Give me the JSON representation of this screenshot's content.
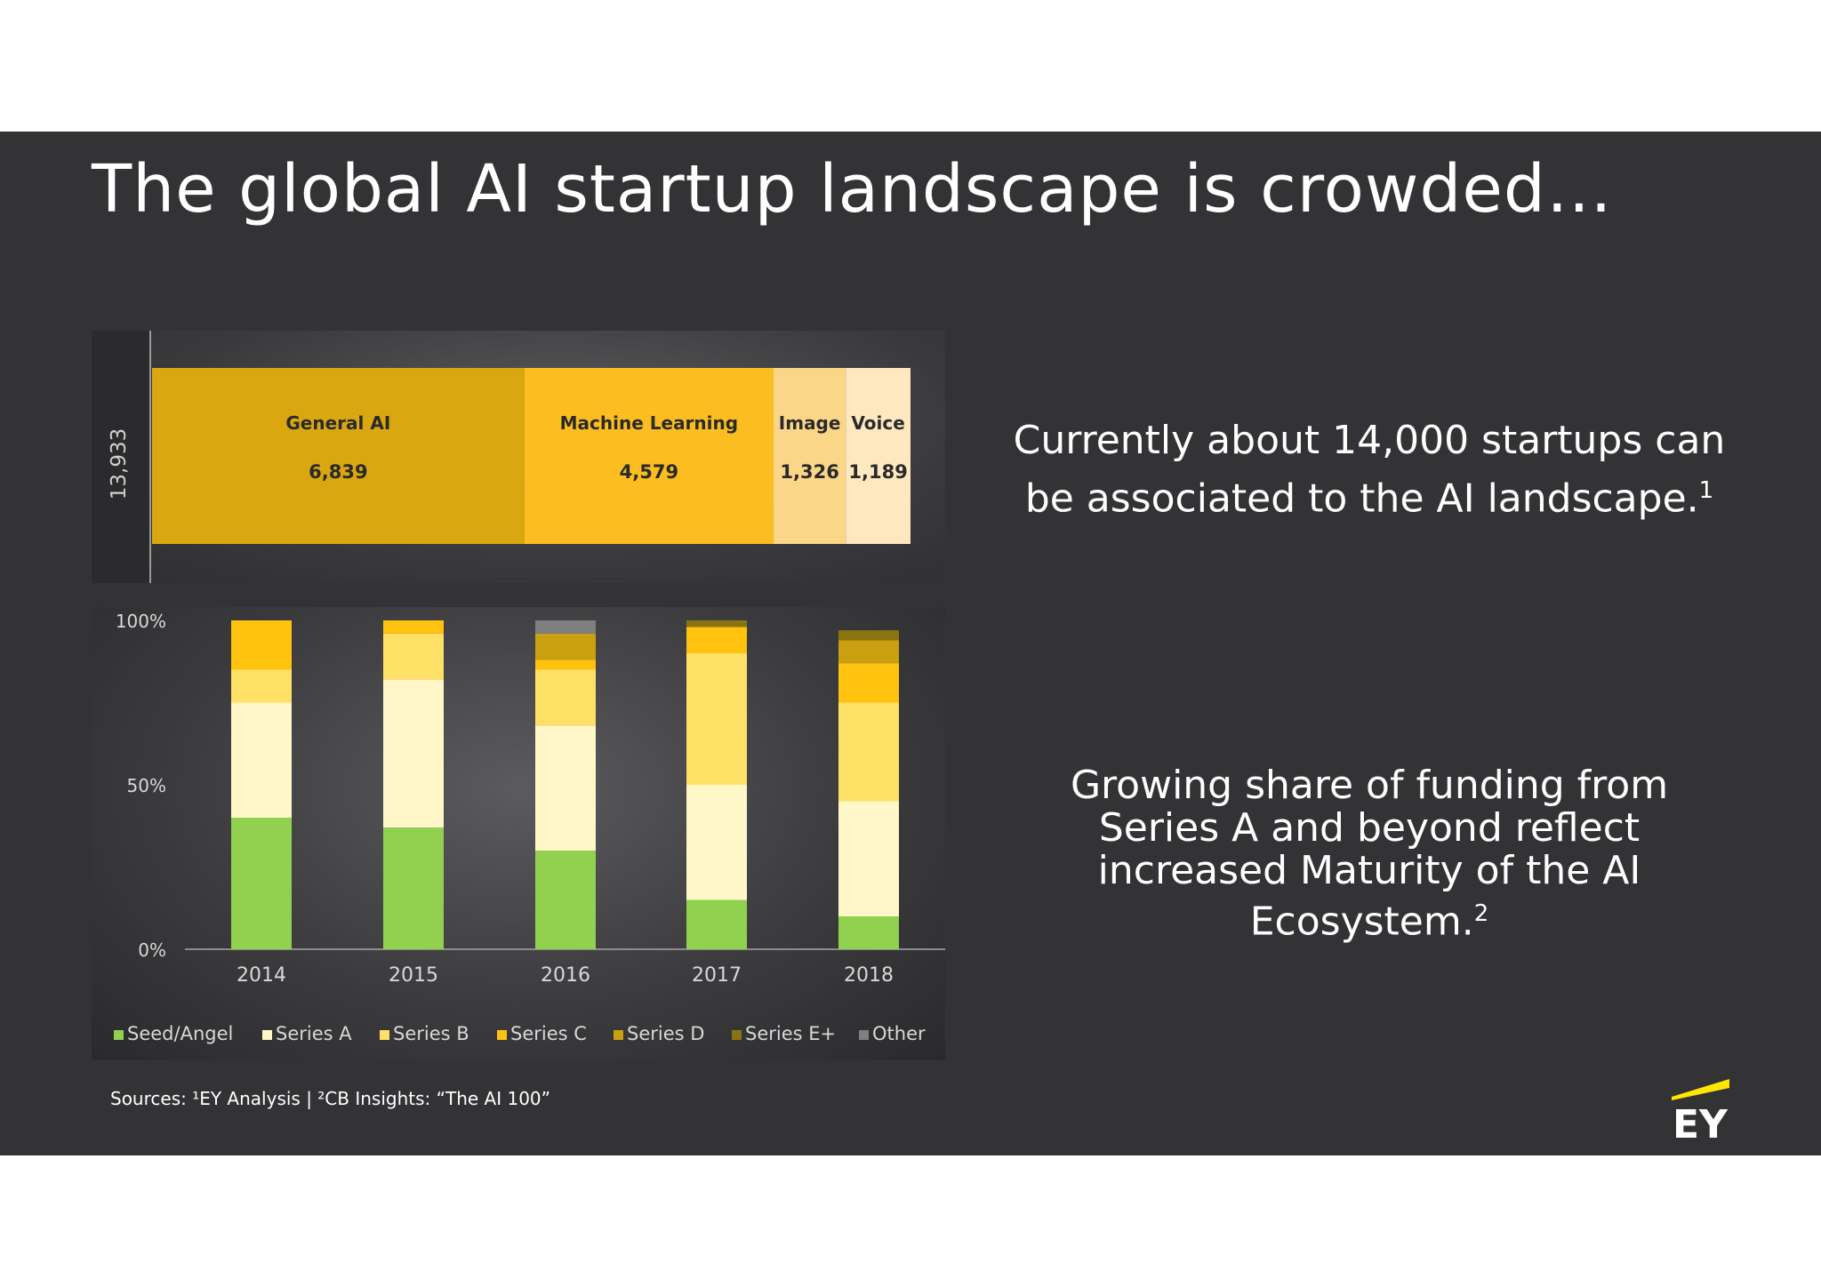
{
  "title": "The global AI startup landscape is crowded…",
  "callout_1": {
    "line1": "Currently about 14,000 startups can",
    "line2": "be associated to the AI landscape.",
    "sup": "1"
  },
  "callout_2": {
    "lines": [
      "Growing share of funding from",
      "Series A and beyond reflect",
      "increased Maturity of the AI"
    ],
    "last": "Ecosystem.",
    "sup": "2"
  },
  "sources": "Sources: ¹EY Analysis | ²CB Insights: “The AI 100”",
  "logo": {
    "text": "EY",
    "accent": "#ffe600"
  },
  "colors": {
    "background": "#333336",
    "general_ai": "#dba710",
    "machine_learning": "#fbbd1f",
    "image": "#fcd688",
    "voice": "#fde8c0",
    "seed": "#92d050",
    "series_a": "#fff7c8",
    "series_b": "#ffe066",
    "series_c": "#ffc20e",
    "series_d": "#c9a010",
    "series_e": "#8a7410",
    "other": "#7f7f7f"
  },
  "chart_data": [
    {
      "type": "bar",
      "orientation": "horizontal-stacked",
      "total_label": "13,933",
      "categories": [
        "General AI",
        "Machine Learning",
        "Image",
        "Voice"
      ],
      "values": [
        6839,
        4579,
        1326,
        1189
      ],
      "value_labels": [
        "6,839",
        "4,579",
        "1,326",
        "1,189"
      ]
    },
    {
      "type": "bar",
      "orientation": "vertical-stacked-100",
      "categories": [
        "2014",
        "2015",
        "2016",
        "2017",
        "2018"
      ],
      "y_ticks": [
        "0%",
        "50%",
        "100%"
      ],
      "ylim": [
        0,
        100
      ],
      "legend_position": "bottom",
      "series": [
        {
          "name": "Seed/Angel",
          "values": [
            40,
            37,
            30,
            15,
            10
          ]
        },
        {
          "name": "Series A",
          "values": [
            35,
            45,
            38,
            35,
            35
          ]
        },
        {
          "name": "Series B",
          "values": [
            10,
            14,
            17,
            40,
            30
          ]
        },
        {
          "name": "Series C",
          "values": [
            15,
            4,
            3,
            8,
            12
          ]
        },
        {
          "name": "Series D",
          "values": [
            0,
            0,
            8,
            0,
            7
          ]
        },
        {
          "name": "Series E+",
          "values": [
            0,
            0,
            0,
            2,
            3
          ]
        },
        {
          "name": "Other",
          "values": [
            0,
            0,
            4,
            0,
            0
          ]
        }
      ]
    }
  ]
}
